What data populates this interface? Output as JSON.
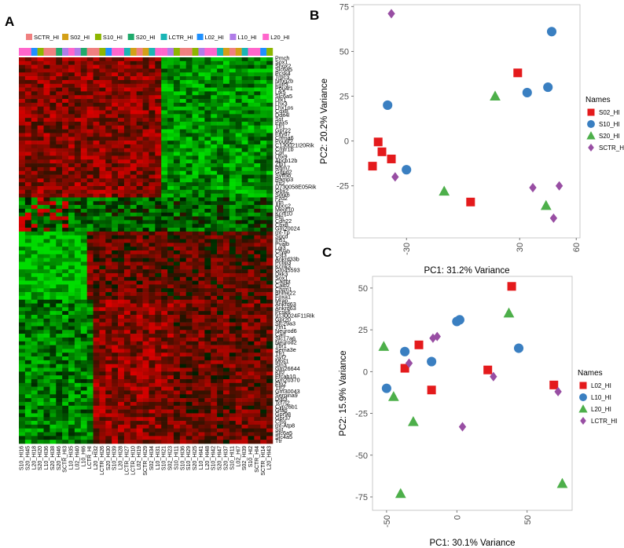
{
  "panels": {
    "a": "A",
    "b": "B",
    "c": "C"
  },
  "heatmap": {
    "groups": [
      {
        "name": "SCTR_HI",
        "color": "#f08080"
      },
      {
        "name": "S02_HI",
        "color": "#d4a017"
      },
      {
        "name": "S10_HI",
        "color": "#8db600"
      },
      {
        "name": "S20_HI",
        "color": "#1faa6b"
      },
      {
        "name": "LCTR_HI",
        "color": "#19b5b5"
      },
      {
        "name": "L02_HI",
        "color": "#1e90ff"
      },
      {
        "name": "L10_HI",
        "color": "#b07ce8"
      },
      {
        "name": "L20_HI",
        "color": "#ff66cc"
      }
    ],
    "genes": [
      "Pmch",
      "Sox1",
      "Shox2",
      "Slc6a5",
      "Pcsk4",
      "Trpc3",
      "Ntng2b",
      "Fgfr3",
      "Pou4f1",
      "Ltk5",
      "Slc6a5",
      "Dlx1",
      "Lhx3",
      "Lhx1os",
      "Cox8",
      "Ddit4l",
      "Sst",
      "Pax5",
      "Tfr1",
      "Gpr22",
      "Fxyd7",
      "Chrna6",
      "Pou6f2",
      "C130021I20Rik",
      "Cmtr1b",
      "Cpt",
      "Lhx9",
      "Abcb12b",
      "Zfp1",
      "Rbm7",
      "Gdpd2",
      "Sytl5b",
      "Ramp3",
      "Ttr2",
      "D730058E05Rik",
      "Gbx2",
      "Sdrk6",
      "Fzd2",
      "Vtn",
      "Abcc2",
      "Megf10",
      "Kcnj10",
      "Ptn",
      "Cdh22",
      "Cbx8",
      "Gm20024",
      "mt-Tp",
      "Sgcd",
      "Ins1",
      "Pvalb",
      "Lgi3",
      "Cryab",
      "Cst3",
      "Ankrd33b",
      "Pcbp3",
      "Kcnk3",
      "Gm45593",
      "Dkk3",
      "Sox1",
      "Cartpt",
      "Calb2",
      "Chrm1",
      "Bhlhe22",
      "Foxa1",
      "Mrap",
      "Ankrd63",
      "Ankrd63",
      "Pcsk6",
      "9130024F11Rik",
      "Gpr20",
      "Slc29a3",
      "Ttn1",
      "Neurod6",
      "Cart",
      "Slc17a6",
      "Neurod2",
      "Tbr1",
      "Sema3e",
      "Tfr1",
      "Syt2",
      "Mos1",
      "Stn3",
      "Gm26644",
      "Klf2",
      "Efcab10",
      "Gm20370",
      "Ffp2",
      "Ttr2",
      "Gm30043",
      "Serpina9",
      "Ddr3",
      "Tcf7l2",
      "Cyp26b1",
      "Gfap",
      "Gpr98",
      "Gpr37",
      "Ctss",
      "mt-Atp8",
      "Sst",
      "Slc6a5",
      "Slc4a5",
      "Ttr"
    ],
    "samples": [
      "S10_HI16",
      "S20_HI45",
      "L20_HI18",
      "S20_HI20",
      "L10_HI36",
      "S20_HI38",
      "S20_HI46",
      "SCTR_HI3",
      "L10_HI35",
      "L02_HI40",
      "L10_HI6",
      "LCTR_HI",
      "L20_HI32",
      "LCTR_HI26",
      "S20_HI30",
      "S10_HI39",
      "L20_HI28",
      "LCTR_HI27",
      "LCTR_HI10",
      "L02_HI19",
      "SCTR_HI29",
      "S02_HI34",
      "L10_HI31",
      "S10_HI21",
      "S02_HI23",
      "S10_HI11",
      "S10_HI36",
      "S10_HI29",
      "S20_HI25",
      "L10_HI41",
      "L20_HI48",
      "S10_HI42",
      "S20_HI47",
      "S20_HI37",
      "S10_HI11",
      "L02_HI7",
      "S02_HI39",
      "S10_HI2",
      "SCTR_HI4",
      "SCTR_HI14",
      "L20_HI43"
    ]
  },
  "chart_data": [
    {
      "type": "scatter",
      "title": "",
      "xlabel": "PC1: 31.2% Variance",
      "ylabel": "PC2: 20.2% Variance",
      "xticks": [
        -30,
        30,
        60
      ],
      "xticklabels": [
        "-30",
        "30",
        "60"
      ],
      "yticks": [
        75,
        50,
        25,
        0,
        -25
      ],
      "yticklabels": [
        "75",
        "50",
        "25",
        "0",
        "-25"
      ],
      "xlim": [
        -58,
        62
      ],
      "ylim": [
        -54,
        76
      ],
      "legend_title": "Names",
      "legend_position": "right",
      "series": [
        {
          "name": "S02_HI",
          "color": "#e41a1c",
          "shape": "square",
          "points": [
            [
              -48,
              -14
            ],
            [
              -45,
              -0.5
            ],
            [
              -43,
              -6
            ],
            [
              -38,
              -10
            ],
            [
              4,
              -34
            ],
            [
              29,
              38
            ]
          ]
        },
        {
          "name": "S10_HI",
          "color": "#3a7fc1",
          "shape": "circle",
          "points": [
            [
              -40,
              20
            ],
            [
              -30,
              -16
            ],
            [
              34,
              27
            ],
            [
              45,
              30
            ],
            [
              47,
              61
            ]
          ]
        },
        {
          "name": "S20_HI",
          "color": "#4daf4a",
          "shape": "triangle",
          "points": [
            [
              -10,
              -28
            ],
            [
              17,
              25
            ],
            [
              44,
              -36
            ]
          ]
        },
        {
          "name": "SCTR_HI",
          "color": "#984ea3",
          "shape": "diamond",
          "points": [
            [
              -38,
              71
            ],
            [
              -36,
              -20
            ],
            [
              37,
              -26
            ],
            [
              48,
              -43
            ],
            [
              51,
              -25
            ]
          ]
        }
      ]
    },
    {
      "type": "scatter",
      "title": "",
      "xlabel": "PC1: 30.1% Variance",
      "ylabel": "PC2: 15.9% Variance",
      "xticks": [
        -50,
        0,
        50
      ],
      "xticklabels": [
        "-50",
        "0",
        "50"
      ],
      "yticks": [
        50,
        25,
        0,
        -25,
        -50,
        -75
      ],
      "yticklabels": [
        "50",
        "25",
        "0",
        "-25",
        "-50",
        "-75"
      ],
      "xlim": [
        -60,
        82
      ],
      "ylim": [
        -83,
        57
      ],
      "legend_title": "Names",
      "legend_position": "right",
      "series": [
        {
          "name": "L02_HI",
          "color": "#e41a1c",
          "shape": "square",
          "points": [
            [
              -37,
              2
            ],
            [
              -27,
              16
            ],
            [
              -18,
              -11
            ],
            [
              22,
              1
            ],
            [
              39,
              51
            ],
            [
              69,
              -8
            ]
          ]
        },
        {
          "name": "L10_HI",
          "color": "#3a7fc1",
          "shape": "circle",
          "points": [
            [
              -50,
              -10
            ],
            [
              -37,
              12
            ],
            [
              -18,
              6
            ],
            [
              0,
              30
            ],
            [
              2,
              31
            ],
            [
              44,
              14
            ]
          ]
        },
        {
          "name": "L20_HI",
          "color": "#4daf4a",
          "shape": "triangle",
          "points": [
            [
              -52,
              15
            ],
            [
              -45,
              -15
            ],
            [
              -40,
              -73
            ],
            [
              -31,
              -30
            ],
            [
              37,
              35
            ],
            [
              75,
              -67
            ]
          ]
        },
        {
          "name": "LCTR_HI",
          "color": "#984ea3",
          "shape": "diamond",
          "points": [
            [
              -34,
              5
            ],
            [
              -17,
              20
            ],
            [
              -14,
              21
            ],
            [
              4,
              -33
            ],
            [
              26,
              -3
            ],
            [
              72,
              -12
            ]
          ]
        }
      ]
    }
  ]
}
